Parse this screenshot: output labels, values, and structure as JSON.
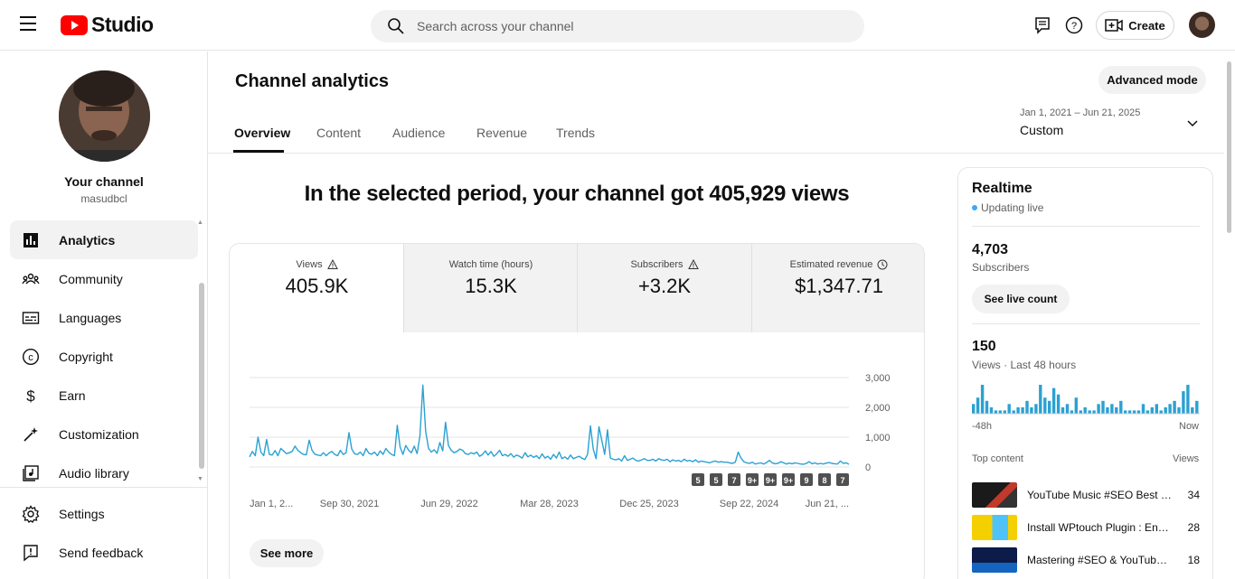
{
  "header": {
    "logo_text": "Studio",
    "search_placeholder": "Search across your channel",
    "create_label": "Create"
  },
  "sidebar": {
    "channel_title": "Your channel",
    "channel_handle": "masudbcl",
    "items": [
      {
        "label": "Analytics",
        "icon": "analytics-icon",
        "active": true
      },
      {
        "label": "Community",
        "icon": "community-icon"
      },
      {
        "label": "Languages",
        "icon": "languages-icon"
      },
      {
        "label": "Copyright",
        "icon": "copyright-icon"
      },
      {
        "label": "Earn",
        "icon": "dollar-icon"
      },
      {
        "label": "Customization",
        "icon": "magic-wand-icon"
      },
      {
        "label": "Audio library",
        "icon": "audio-library-icon"
      }
    ],
    "bottom_items": [
      {
        "label": "Settings",
        "icon": "gear-icon"
      },
      {
        "label": "Send feedback",
        "icon": "feedback-icon"
      }
    ]
  },
  "main": {
    "title": "Channel analytics",
    "advanced_mode_label": "Advanced mode",
    "tabs": [
      {
        "label": "Overview",
        "active": true
      },
      {
        "label": "Content"
      },
      {
        "label": "Audience"
      },
      {
        "label": "Revenue"
      },
      {
        "label": "Trends"
      }
    ],
    "date_range": "Jan 1, 2021 – Jun 21, 2025",
    "date_preset": "Custom",
    "headline": "In the selected period, your channel got 405,929 views",
    "metrics": [
      {
        "label": "Views",
        "value": "405.9K",
        "icon": "warning-icon",
        "active": true
      },
      {
        "label": "Watch time (hours)",
        "value": "15.3K"
      },
      {
        "label": "Subscribers",
        "value": "+3.2K",
        "icon": "warning-icon"
      },
      {
        "label": "Estimated revenue",
        "value": "$1,347.71",
        "icon": "clock-icon"
      }
    ],
    "see_more_label": "See more",
    "accent_color": "#2ba1d3"
  },
  "chart_data": {
    "type": "line",
    "series": [
      {
        "values": [
          340,
          520,
          380,
          1000,
          500,
          380,
          920,
          420,
          400,
          550,
          380,
          620,
          540,
          450,
          480,
          520,
          700,
          560,
          480,
          420,
          410,
          900,
          560,
          430,
          400,
          380,
          480,
          380,
          470,
          520,
          420,
          380,
          560,
          420,
          480,
          1150,
          600,
          440,
          420,
          500,
          380,
          620,
          460,
          430,
          500,
          380,
          540,
          420,
          620,
          500,
          420,
          380,
          1400,
          680,
          420,
          720,
          560,
          480,
          700,
          450,
          1050,
          2750,
          1200,
          620,
          500,
          580,
          460,
          820,
          540,
          1500,
          720,
          560,
          480,
          520,
          600,
          560,
          450,
          420,
          480,
          440,
          500,
          360,
          420,
          540,
          400,
          520,
          360,
          440,
          560,
          380,
          420,
          360,
          450,
          330,
          400,
          360,
          300,
          480,
          340,
          400,
          320,
          380,
          280,
          440,
          300,
          360,
          260,
          420,
          300,
          500,
          280,
          340,
          260,
          400,
          280,
          320,
          360,
          300,
          250,
          420,
          1380,
          600,
          280,
          1350,
          900,
          420,
          1250,
          300,
          260,
          240,
          280,
          200,
          380,
          220,
          260,
          300,
          220,
          200,
          240,
          280,
          220,
          220,
          260,
          200,
          280,
          240,
          220,
          260,
          180,
          240,
          200,
          220,
          180,
          260,
          200,
          220,
          180,
          240,
          160,
          200,
          180,
          160,
          140,
          180,
          200,
          160,
          180,
          160,
          160,
          140,
          120,
          160,
          500,
          300,
          180,
          140,
          120,
          160,
          100,
          120,
          140,
          100,
          150,
          220,
          140,
          110,
          120,
          180,
          140,
          100,
          130,
          110,
          140,
          120,
          100,
          90,
          120,
          180,
          110,
          140,
          100,
          120,
          100,
          130,
          150,
          120,
          110,
          100,
          200,
          120,
          140,
          90
        ]
      }
    ],
    "x_tick_labels": [
      "Jan 1, 2...",
      "Sep 30, 2021",
      "Jun 29, 2022",
      "Mar 28, 2023",
      "Dec 25, 2023",
      "Sep 22, 2024",
      "Jun 21, ..."
    ],
    "y_tick_labels": [
      "3,000",
      "2,000",
      "1,000",
      "0"
    ],
    "ylim": [
      0,
      3000
    ],
    "grid": true,
    "annotation_badges": [
      "5",
      "5",
      "7",
      "9+",
      "9+",
      "9+",
      "9",
      "8",
      "7"
    ]
  },
  "realtime": {
    "title": "Realtime",
    "status": "Updating live",
    "subscribers_value": "4,703",
    "subscribers_label": "Subscribers",
    "live_count_label": "See live count",
    "views_value": "150",
    "views_label": "Views · Last 48 hours",
    "axis_left": "-48h",
    "axis_right": "Now",
    "bars": [
      3,
      5,
      9,
      4,
      2,
      1,
      1,
      1,
      3,
      1,
      2,
      2,
      4,
      2,
      3,
      9,
      5,
      4,
      8,
      6,
      2,
      3,
      1,
      5,
      1,
      2,
      1,
      1,
      3,
      4,
      2,
      3,
      2,
      4,
      1,
      1,
      1,
      1,
      3,
      1,
      2,
      3,
      1,
      2,
      3,
      4,
      2,
      7,
      9,
      2,
      4
    ]
  },
  "top_content": {
    "header_left": "Top content",
    "header_right": "Views",
    "items": [
      {
        "title": "YouTube Music #SEO Best Practices",
        "views": "34"
      },
      {
        "title": "Install WPtouch Plugin : English",
        "views": "28"
      },
      {
        "title": "Mastering #SEO & YouTube Growth",
        "views": "18"
      }
    ]
  }
}
